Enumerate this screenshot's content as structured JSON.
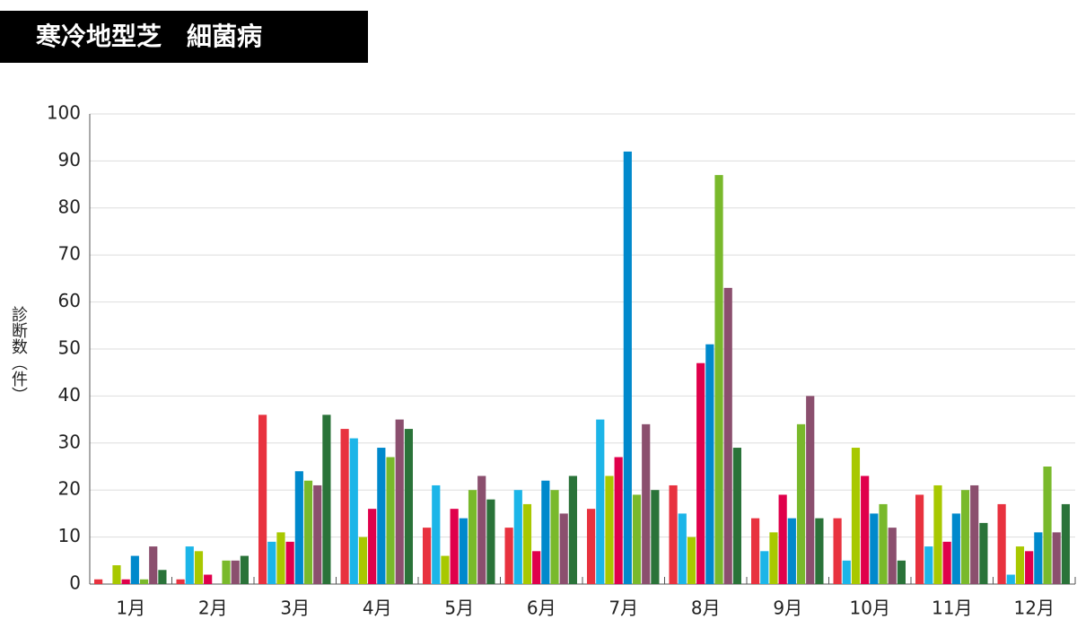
{
  "chart_data": {
    "type": "bar",
    "title": "寒冷地型芝　細菌病",
    "y_label": "診断数（件）",
    "categories": [
      "1月",
      "2月",
      "3月",
      "4月",
      "5月",
      "6月",
      "7月",
      "8月",
      "9月",
      "10月",
      "11月",
      "12月"
    ],
    "series": [
      {
        "color": "#e8323f",
        "values": [
          1,
          1,
          36,
          33,
          12,
          12,
          16,
          21,
          14,
          14,
          19,
          17
        ]
      },
      {
        "color": "#1cb5e8",
        "values": [
          0,
          8,
          9,
          31,
          21,
          20,
          35,
          15,
          7,
          5,
          8,
          2
        ]
      },
      {
        "color": "#a8c800",
        "values": [
          4,
          7,
          11,
          10,
          6,
          17,
          23,
          10,
          11,
          29,
          21,
          8
        ]
      },
      {
        "color": "#e0004b",
        "values": [
          1,
          2,
          9,
          16,
          16,
          7,
          27,
          47,
          19,
          23,
          9,
          7
        ]
      },
      {
        "color": "#0089cc",
        "values": [
          6,
          0,
          24,
          29,
          14,
          22,
          92,
          51,
          14,
          15,
          15,
          11
        ]
      },
      {
        "color": "#79b92b",
        "values": [
          1,
          5,
          22,
          27,
          20,
          20,
          19,
          87,
          34,
          17,
          20,
          25
        ]
      },
      {
        "color": "#8b4f6e",
        "values": [
          8,
          5,
          21,
          35,
          23,
          15,
          34,
          63,
          40,
          12,
          21,
          11
        ]
      },
      {
        "color": "#2a7339",
        "values": [
          3,
          6,
          36,
          33,
          18,
          23,
          20,
          29,
          14,
          5,
          13,
          17
        ]
      }
    ],
    "ylim": [
      0,
      100
    ],
    "yticks": [
      0,
      10,
      20,
      30,
      40,
      50,
      60,
      70,
      80,
      90,
      100
    ],
    "grid": true
  }
}
